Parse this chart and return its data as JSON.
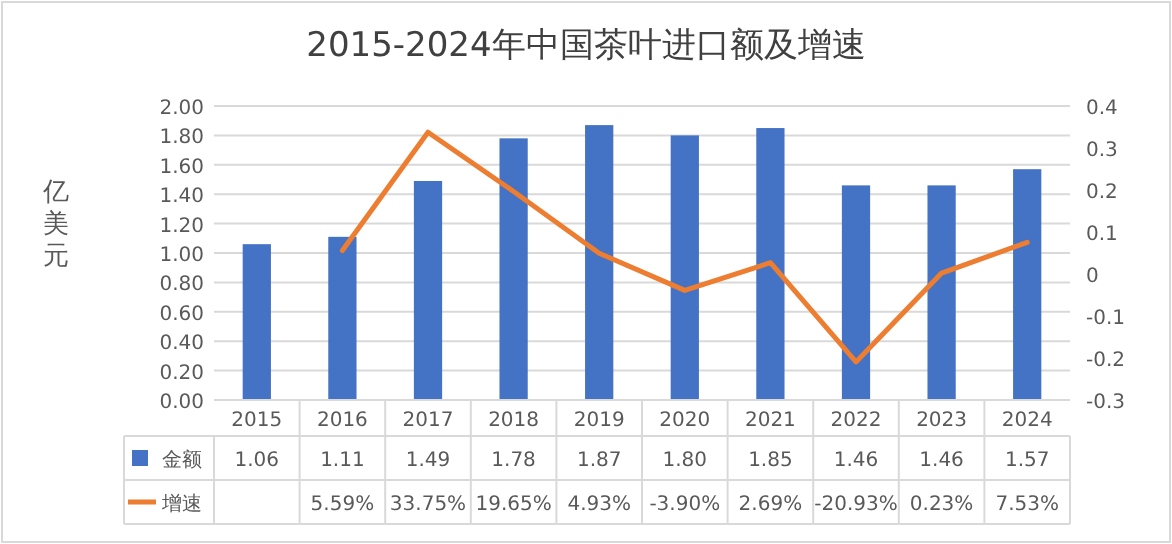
{
  "chart_data": {
    "type": "bar",
    "title": "2015-2024年中国茶叶进口额及增速",
    "ylabel": "亿美元",
    "categories": [
      "2015",
      "2016",
      "2017",
      "2018",
      "2019",
      "2020",
      "2021",
      "2022",
      "2023",
      "2024"
    ],
    "series": [
      {
        "name": "金额",
        "color": "#4472c4",
        "values": [
          1.06,
          1.11,
          1.49,
          1.78,
          1.87,
          1.8,
          1.85,
          1.46,
          1.46,
          1.57
        ],
        "value_labels": [
          "1.06",
          "1.11",
          "1.49",
          "1.78",
          "1.87",
          "1.80",
          "1.85",
          "1.46",
          "1.46",
          "1.57"
        ]
      },
      {
        "name": "增速",
        "type": "line",
        "axis": "y2",
        "color": "#ed7d31",
        "values": [
          null,
          0.0559,
          0.3375,
          0.1965,
          0.0493,
          -0.039,
          0.0269,
          -0.2093,
          0.0023,
          0.0753
        ],
        "value_labels": [
          null,
          "5.59%",
          "33.75%",
          "19.65%",
          "4.93%",
          "-3.90%",
          "2.69%",
          "-20.93%",
          "0.23%",
          "7.53%"
        ]
      }
    ],
    "ylim": [
      0,
      2
    ],
    "yticks": [
      {
        "value": 0,
        "label": "0.00"
      },
      {
        "value": 0.2,
        "label": "0.20"
      },
      {
        "value": 0.4,
        "label": "0.40"
      },
      {
        "value": 0.6,
        "label": "0.60"
      },
      {
        "value": 0.8,
        "label": "0.80"
      },
      {
        "value": 1,
        "label": "1.00"
      },
      {
        "value": 1.2,
        "label": "1.20"
      },
      {
        "value": 1.4,
        "label": "1.40"
      },
      {
        "value": 1.6,
        "label": "1.60"
      },
      {
        "value": 1.8,
        "label": "1.80"
      },
      {
        "value": 2,
        "label": "2.00"
      }
    ],
    "y2lim": [
      -0.3,
      0.4
    ],
    "y2ticks": [
      -0.3,
      -0.2,
      -0.1,
      0,
      0.1,
      0.2,
      0.3,
      0.4
    ],
    "grid": "y",
    "legend": "bottom",
    "data_labels": false
  }
}
